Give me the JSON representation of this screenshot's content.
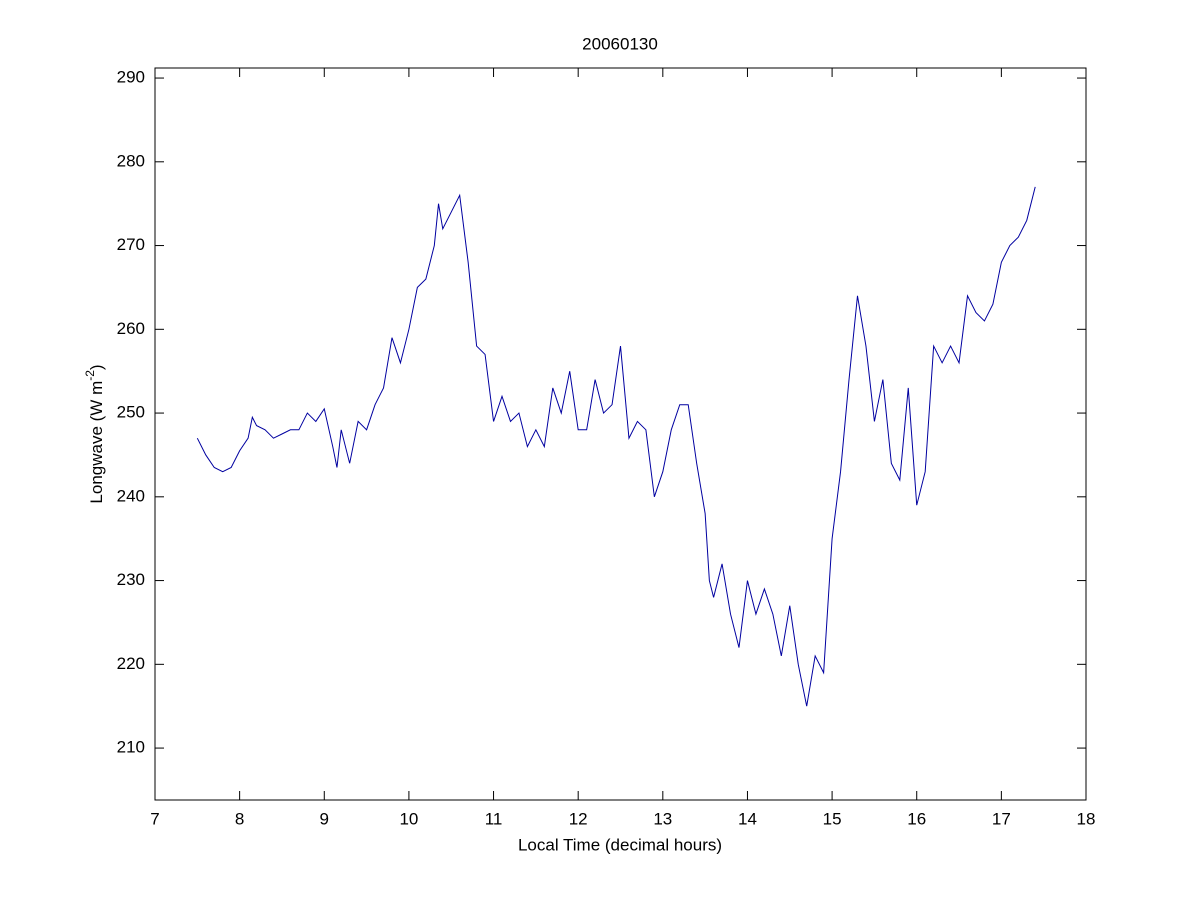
{
  "chart_data": {
    "type": "line",
    "title": "20060130",
    "xlabel": "Local Time (decimal hours)",
    "ylabel": [
      "Longwave (W m",
      "-2",
      ")"
    ],
    "xlim": [
      7,
      18
    ],
    "xticks": [
      7,
      8,
      9,
      10,
      11,
      12,
      13,
      14,
      15,
      16,
      17,
      18
    ],
    "ylim": [
      203.8,
      291.2
    ],
    "yticks": [
      210,
      220,
      230,
      240,
      250,
      260,
      270,
      280,
      290
    ],
    "color": "#0000a0",
    "x": [
      7.5,
      7.6,
      7.7,
      7.8,
      7.9,
      8.0,
      8.1,
      8.15,
      8.2,
      8.3,
      8.4,
      8.5,
      8.6,
      8.7,
      8.8,
      8.9,
      9.0,
      9.1,
      9.15,
      9.2,
      9.3,
      9.4,
      9.5,
      9.6,
      9.7,
      9.8,
      9.9,
      10.0,
      10.1,
      10.2,
      10.3,
      10.35,
      10.4,
      10.5,
      10.6,
      10.7,
      10.8,
      10.9,
      11.0,
      11.1,
      11.2,
      11.3,
      11.4,
      11.5,
      11.6,
      11.7,
      11.8,
      11.9,
      12.0,
      12.1,
      12.2,
      12.3,
      12.4,
      12.5,
      12.6,
      12.7,
      12.8,
      12.9,
      13.0,
      13.1,
      13.2,
      13.3,
      13.4,
      13.5,
      13.55,
      13.6,
      13.7,
      13.8,
      13.9,
      14.0,
      14.1,
      14.2,
      14.3,
      14.4,
      14.5,
      14.6,
      14.7,
      14.8,
      14.9,
      15.0,
      15.1,
      15.2,
      15.3,
      15.4,
      15.5,
      15.6,
      15.7,
      15.8,
      15.9,
      16.0,
      16.1,
      16.2,
      16.3,
      16.4,
      16.5,
      16.6,
      16.7,
      16.8,
      16.9,
      17.0,
      17.1,
      17.2,
      17.3,
      17.4
    ],
    "values": [
      247,
      245,
      243.5,
      243,
      243.5,
      245.5,
      247,
      249.5,
      248.5,
      248,
      247,
      247.5,
      248,
      248,
      250,
      249,
      250.5,
      246,
      243.5,
      248,
      244,
      249,
      248,
      251,
      253,
      259,
      256,
      260,
      265,
      266,
      270,
      275,
      272,
      274,
      276,
      268,
      258,
      257,
      249,
      252,
      249,
      250,
      246,
      248,
      246,
      253,
      250,
      255,
      248,
      248,
      254,
      250,
      251,
      258,
      247,
      249,
      248,
      240,
      243,
      248,
      251,
      251,
      244,
      238,
      230,
      228,
      232,
      226,
      222,
      230,
      226,
      229,
      226,
      221,
      227,
      220,
      215,
      221,
      219,
      235,
      243,
      254,
      264,
      258,
      249,
      254,
      244,
      242,
      253,
      239,
      243,
      258,
      256,
      258,
      256,
      264,
      262,
      261,
      263,
      268,
      270,
      271,
      273,
      277
    ]
  }
}
